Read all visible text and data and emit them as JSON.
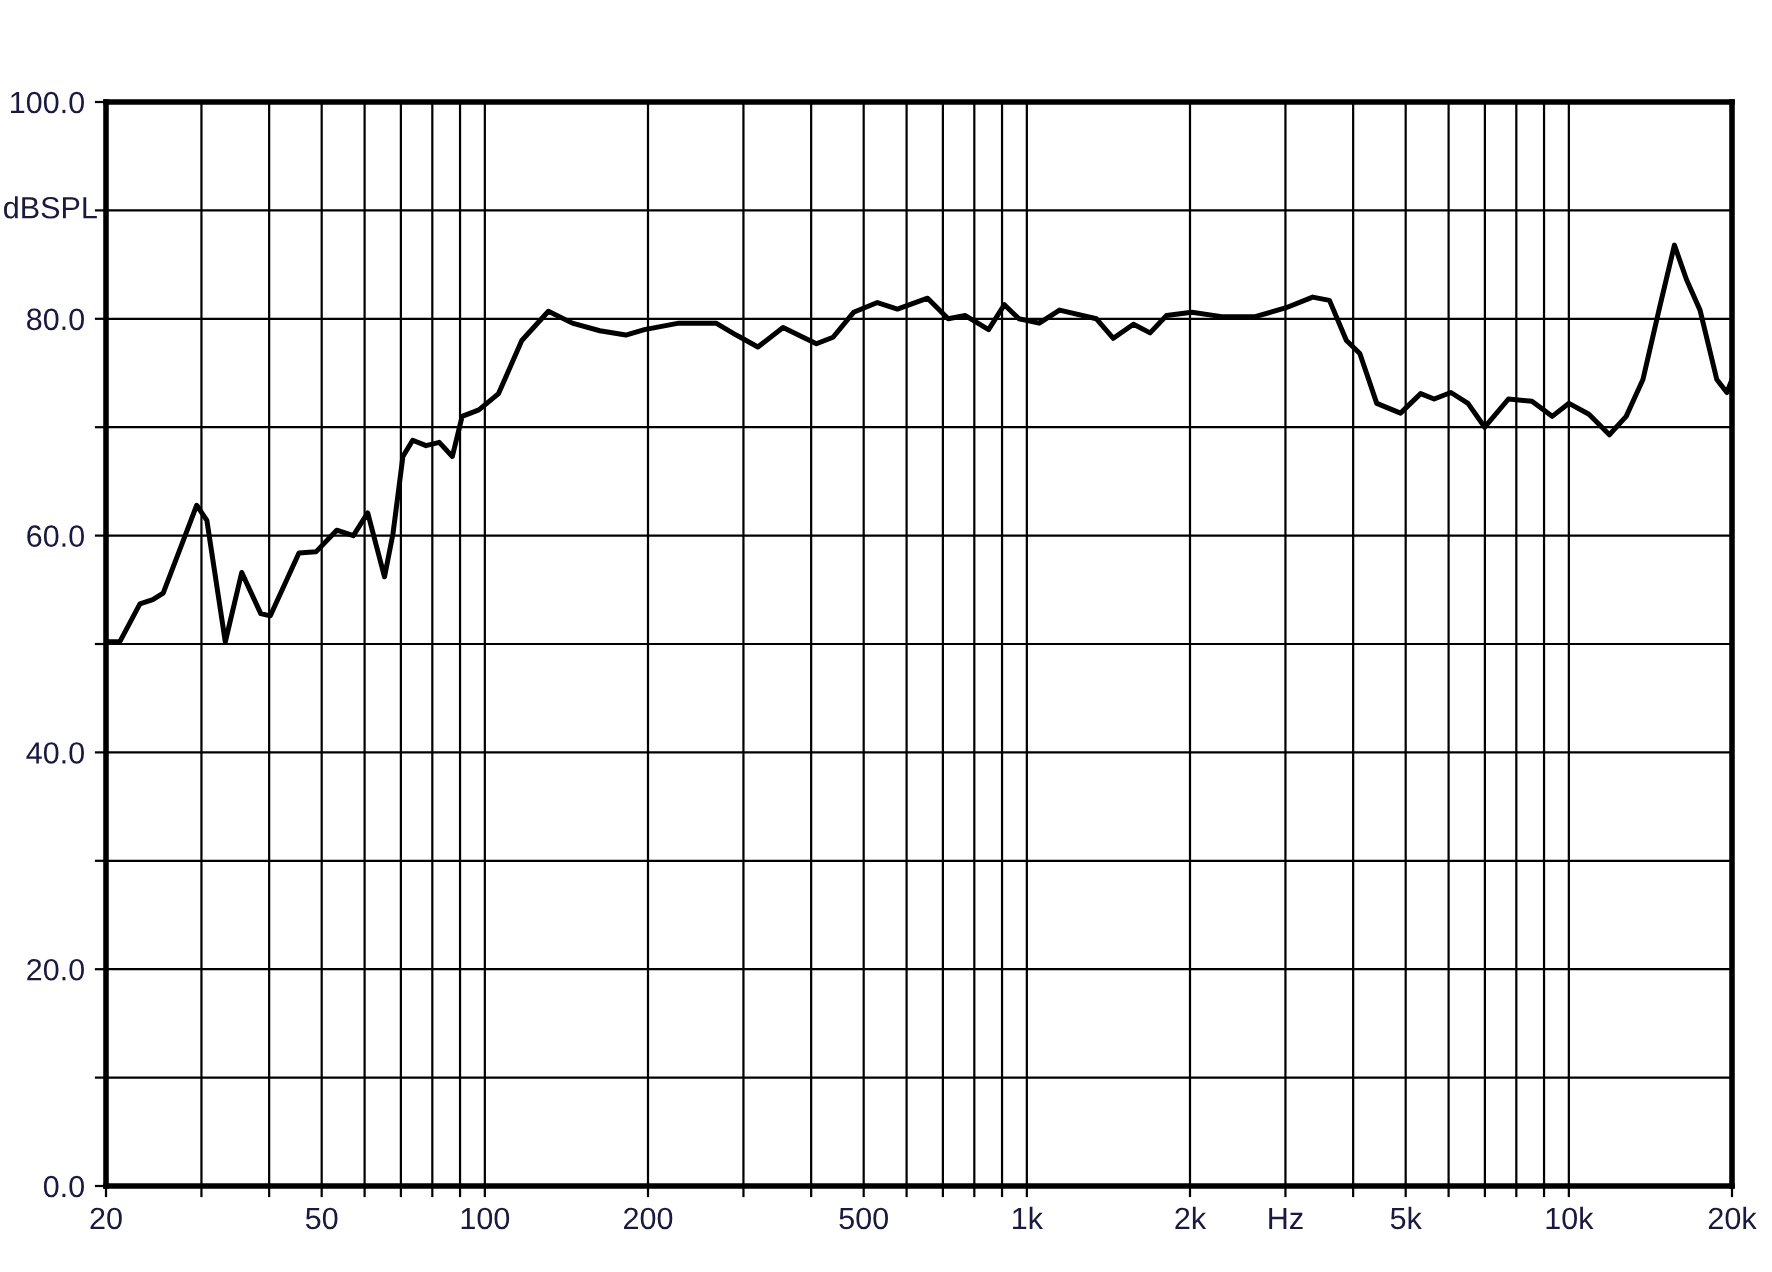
{
  "chart_data": {
    "type": "line",
    "ylabel": "dBSPL",
    "log": "x",
    "grid": true,
    "marker": "none",
    "line_style": "solid",
    "legend": false,
    "xlim": [
      20,
      20000
    ],
    "ylim": [
      0,
      100
    ],
    "xticks": [
      20,
      {
        "value": 30,
        "label": null
      },
      {
        "value": 40,
        "label": null
      },
      50,
      {
        "value": 60,
        "label": null
      },
      {
        "value": 70,
        "label": null
      },
      {
        "value": 80,
        "label": null
      },
      {
        "value": 90,
        "label": null
      },
      100,
      200,
      {
        "value": 300,
        "label": null
      },
      {
        "value": 400,
        "label": null
      },
      500,
      {
        "value": 600,
        "label": null
      },
      {
        "value": 700,
        "label": null
      },
      {
        "value": 800,
        "label": null
      },
      {
        "value": 900,
        "label": null
      },
      {
        "value": 1000,
        "label": "1k"
      },
      {
        "value": 2000,
        "label": "2k"
      },
      {
        "value": 3000,
        "label": "Hz"
      },
      {
        "value": 4000,
        "label": null
      },
      {
        "value": 5000,
        "label": "5k"
      },
      {
        "value": 6000,
        "label": null
      },
      {
        "value": 7000,
        "label": null
      },
      {
        "value": 8000,
        "label": null
      },
      {
        "value": 9000,
        "label": null
      },
      {
        "value": 10000,
        "label": "10k"
      },
      {
        "value": 20000,
        "label": "20k"
      }
    ],
    "yticks": [
      {
        "value": 0,
        "label": "0.0"
      },
      {
        "value": 10,
        "label": null
      },
      {
        "value": 20,
        "label": "20.0"
      },
      {
        "value": 30,
        "label": null
      },
      {
        "value": 40,
        "label": "40.0"
      },
      {
        "value": 50,
        "label": null
      },
      {
        "value": 60,
        "label": "60.0"
      },
      {
        "value": 70,
        "label": null
      },
      {
        "value": 80,
        "label": "80.0"
      },
      {
        "value": 90,
        "label": null
      },
      {
        "value": 100,
        "label": "100.0"
      }
    ],
    "series": [
      {
        "color": "#000000",
        "x": [
          20,
          21.2,
          23.1,
          24.4,
          25.5,
          27.8,
          29.4,
          30.7,
          33.2,
          35.6,
          38.6,
          40.2,
          45.4,
          48.8,
          53.3,
          57.2,
          60.8,
          65.3,
          67.7,
          70.6,
          73.6,
          77.9,
          82.4,
          87.1,
          90.8,
          97.5,
          106,
          117,
          131,
          145,
          163,
          182,
          197,
          228,
          267,
          291,
          319,
          355,
          409,
          439,
          479,
          530,
          577,
          656,
          716,
          770,
          850,
          909,
          967,
          1054,
          1149,
          1344,
          1444,
          1573,
          1688,
          1810,
          2015,
          2288,
          2638,
          3000,
          3368,
          3617,
          3887,
          4115,
          4422,
          4891,
          5328,
          5642,
          6059,
          6515,
          6996,
          7737,
          8549,
          9316,
          10007,
          10891,
          11880,
          12758,
          13700,
          14713,
          15660,
          16490,
          17460,
          18750,
          19570,
          20000
        ],
        "values": [
          50.2,
          50.2,
          53.7,
          54.1,
          54.7,
          59.6,
          62.8,
          61.4,
          50.2,
          56.6,
          52.8,
          52.6,
          58.4,
          58.5,
          60.5,
          60.0,
          62.1,
          56.2,
          60.2,
          67.3,
          68.8,
          68.3,
          68.6,
          67.3,
          71.0,
          71.6,
          73.1,
          78.0,
          80.7,
          79.6,
          78.9,
          78.5,
          79.0,
          79.6,
          79.6,
          78.5,
          77.4,
          79.2,
          77.7,
          78.3,
          80.6,
          81.5,
          80.9,
          81.9,
          80.0,
          80.3,
          79.0,
          81.3,
          80.0,
          79.6,
          80.8,
          80.0,
          78.2,
          79.5,
          78.7,
          80.3,
          80.6,
          80.2,
          80.2,
          81.0,
          82.0,
          81.7,
          78.0,
          76.8,
          72.2,
          71.3,
          73.1,
          72.6,
          73.2,
          72.2,
          70.0,
          72.6,
          72.4,
          71.0,
          72.2,
          71.2,
          69.3,
          71.0,
          74.4,
          81.1,
          86.8,
          83.6,
          80.8,
          74.4,
          73.2,
          74.4
        ]
      }
    ]
  }
}
